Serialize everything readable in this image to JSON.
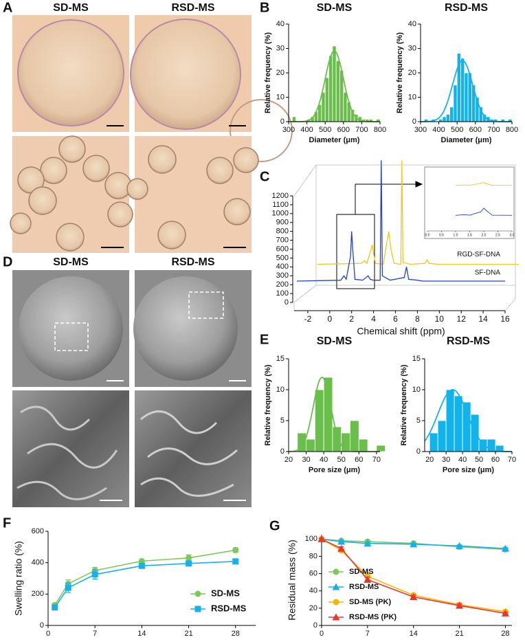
{
  "panel_labels": [
    "A",
    "B",
    "C",
    "D",
    "E",
    "F",
    "G"
  ],
  "photo_titles": {
    "A": [
      "SD-MS",
      "RSD-MS"
    ],
    "D": [
      "SD-MS",
      "RSD-MS"
    ]
  },
  "chart_data": [
    {
      "type": "histogram",
      "title": "SD-MS",
      "xlabel": "Diameter (μm)",
      "ylabel": "Relative frequency (%)",
      "color": "#6abf4b",
      "bins": [
        300,
        320,
        340,
        360,
        380,
        400,
        420,
        440,
        460,
        480,
        500,
        520,
        540,
        560,
        580,
        600,
        620,
        640,
        660,
        680,
        700,
        720,
        740,
        760,
        780,
        800
      ],
      "values": [
        0,
        2,
        0,
        0,
        0,
        1,
        2,
        4,
        7,
        12,
        18,
        27,
        31,
        25,
        21,
        12,
        8,
        5,
        3,
        2,
        1,
        1,
        1,
        0,
        1
      ],
      "fit": {
        "mean": 550,
        "sd": 50,
        "height": 29
      },
      "xlim": [
        300,
        800
      ],
      "xticks": [
        300,
        400,
        500,
        600,
        700,
        800
      ],
      "ylim": [
        0,
        40
      ],
      "yticks": [
        0,
        10,
        20,
        30,
        40
      ]
    },
    {
      "type": "histogram",
      "title": "RSD-MS",
      "xlabel": "Diameter (μm)",
      "ylabel": "Relative frequency (%)",
      "color": "#12b3ea",
      "bins": [
        300,
        320,
        340,
        360,
        380,
        400,
        420,
        440,
        460,
        480,
        500,
        520,
        540,
        560,
        580,
        600,
        620,
        640,
        660,
        680,
        700,
        720,
        740,
        760,
        780,
        800
      ],
      "values": [
        0,
        1,
        0,
        1,
        0,
        1,
        2,
        3,
        6,
        15,
        28,
        26,
        20,
        20,
        15,
        10,
        6,
        3,
        2,
        1,
        1,
        0,
        1,
        0,
        1
      ],
      "fit": {
        "mean": 530,
        "sd": 55,
        "height": 25
      },
      "xlim": [
        300,
        800
      ],
      "xticks": [
        300,
        400,
        500,
        600,
        700,
        800
      ],
      "ylim": [
        0,
        40
      ],
      "yticks": [
        0,
        10,
        20,
        30,
        40
      ]
    },
    {
      "type": "waterfall",
      "xlabel": "Chemical shift (ppm)",
      "x": [
        -3,
        1.0,
        1.3,
        1.5,
        1.9,
        2.0,
        2.1,
        2.3,
        3.0,
        3.5,
        3.7,
        4.0,
        4.6,
        4.7,
        4.8,
        5.5,
        6.8,
        7.0,
        7.2,
        8.0,
        8.5,
        12,
        16
      ],
      "series": [
        {
          "name": "RGD-SF-DNA",
          "color": "#f5c518",
          "values": [
            430,
            440,
            470,
            440,
            600,
            650,
            560,
            440,
            430,
            800,
            600,
            440,
            430,
            1600,
            450,
            430,
            440,
            480,
            440,
            430,
            430,
            430,
            430
          ]
        },
        {
          "name": "SF-DNA",
          "color": "#1f3fd6",
          "values": [
            240,
            250,
            300,
            260,
            520,
            800,
            600,
            260,
            250,
            300,
            260,
            250,
            250,
            1600,
            300,
            250,
            280,
            400,
            260,
            250,
            240,
            240,
            240
          ]
        }
      ],
      "xlim": [
        -3,
        16
      ],
      "xticks": [
        -2,
        0,
        2,
        4,
        6,
        8,
        10,
        12,
        14,
        16
      ],
      "ylim": [
        0,
        1200
      ],
      "yticks": [
        0,
        100,
        200,
        300,
        400,
        500,
        600,
        700,
        800,
        900,
        1000,
        1100,
        1200
      ],
      "inset_xlim": [
        0,
        3
      ],
      "inset_xticks": [
        {
          "value": 0,
          "label": "0.0"
        },
        {
          "value": 0.5,
          "label": "0.5"
        },
        {
          "value": 1,
          "label": "1.0"
        },
        {
          "value": 1.5,
          "label": "1.5"
        },
        {
          "value": 2,
          "label": "2.0"
        },
        {
          "value": 2.5,
          "label": "2.5"
        },
        {
          "value": 3,
          "label": "3.0"
        }
      ]
    },
    {
      "type": "histogram",
      "title": "SD-MS",
      "xlabel": "Pore size (μm)",
      "ylabel": "Relative frequency (%)",
      "color": "#6abf4b",
      "bins": [
        25,
        30,
        35,
        40,
        45,
        50,
        55,
        60,
        65,
        70,
        75
      ],
      "values": [
        3,
        2,
        10,
        12,
        4,
        3,
        5,
        2,
        0,
        1
      ],
      "fit": {
        "mean": 39,
        "sd": 5,
        "height": 12
      },
      "xlim": [
        20,
        72
      ],
      "xticks": [
        20,
        30,
        40,
        50,
        60,
        70
      ],
      "ylim": [
        0,
        15
      ],
      "yticks": [
        0,
        5,
        10,
        15
      ]
    },
    {
      "type": "histogram",
      "title": "RSD-MS",
      "xlabel": "Pore size (μm)",
      "ylabel": "Relative frequency (%)",
      "color": "#12b3ea",
      "bins": [
        20,
        25,
        30,
        35,
        40,
        45,
        50,
        55,
        60,
        65
      ],
      "values": [
        3,
        5,
        10,
        9,
        8,
        6,
        2,
        2,
        1
      ],
      "fit": {
        "mean": 34,
        "sd": 9,
        "height": 10
      },
      "xlim": [
        17,
        70
      ],
      "xticks": [
        20,
        30,
        40,
        50,
        60,
        70
      ],
      "ylim": [
        0,
        15
      ],
      "yticks": [
        0,
        5,
        10,
        15
      ]
    },
    {
      "type": "line",
      "ylabel": "Swelling ratio (%)",
      "legend": "lower right",
      "x": [
        1,
        3,
        7,
        14,
        21,
        28
      ],
      "series": [
        {
          "name": "SD-MS",
          "color": "#7cc95a",
          "marker": "circle",
          "values": [
            130,
            265,
            350,
            410,
            430,
            480
          ],
          "errors": [
            8,
            25,
            20,
            8,
            20,
            15
          ]
        },
        {
          "name": "RSD-MS",
          "color": "#16b0ec",
          "marker": "square",
          "values": [
            115,
            240,
            325,
            380,
            395,
            408
          ],
          "errors": [
            8,
            30,
            30,
            8,
            10,
            15
          ]
        }
      ],
      "xlim": [
        0,
        31
      ],
      "xticks": [
        0,
        7,
        14,
        21,
        28
      ],
      "ylim": [
        0,
        600
      ],
      "yticks": [
        0,
        200,
        400,
        600
      ]
    },
    {
      "type": "line",
      "ylabel": "Residual mass (%)",
      "legend": "lower left",
      "x": [
        0,
        3,
        7,
        14,
        21,
        28
      ],
      "series": [
        {
          "name": "SD-MS",
          "color": "#7cc95a",
          "marker": "circle",
          "values": [
            100,
            98,
            97,
            95,
            91,
            88
          ],
          "errors": [
            1,
            1,
            1,
            1,
            1,
            1
          ]
        },
        {
          "name": "RSD-MS",
          "color": "#16b0ec",
          "marker": "triangle",
          "values": [
            100,
            97,
            95,
            94,
            92,
            89
          ],
          "errors": [
            1,
            1,
            1,
            1,
            1,
            1
          ]
        },
        {
          "name": "SD-MS (PK)",
          "color": "#f7b500",
          "marker": "circle",
          "values": [
            100,
            87,
            57,
            35,
            24,
            16
          ],
          "errors": [
            1,
            2,
            4,
            2,
            2,
            1
          ]
        },
        {
          "name": "RSD-MS (PK)",
          "color": "#e8352e",
          "marker": "triangle",
          "values": [
            100,
            89,
            53,
            33,
            23,
            14
          ],
          "errors": [
            1,
            2,
            3,
            2,
            2,
            1
          ]
        }
      ],
      "xlim": [
        0,
        29
      ],
      "xticks": [
        0,
        7,
        14,
        21,
        28
      ],
      "ylim": [
        0,
        105
      ],
      "yticks": [
        0,
        20,
        40,
        60,
        80,
        100
      ]
    }
  ]
}
